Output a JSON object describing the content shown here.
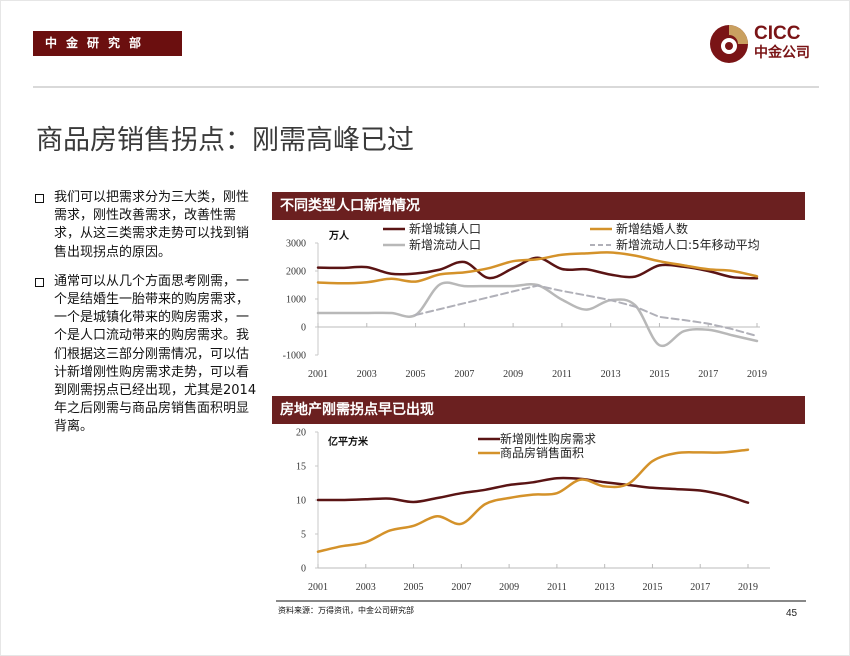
{
  "header": {
    "department": "中金研究部",
    "logo_latin": "CICC",
    "logo_chinese": "中金公司",
    "title": "商品房销售拐点：刚需高峰已过"
  },
  "bullets": [
    "我们可以把需求分为三大类，刚性需求，刚性改善需求，改善性需求，从这三类需求走势可以找到销售出现拐点的原因。",
    "通常可以从几个方面思考刚需，一个是结婚生一胎带来的购房需求，一个是城镇化带来的购房需求，一个是人口流动带来的购房需求。我们根据这三部分刚需情况，可以估计新增刚性购房需求走势，可以看到刚需拐点已经出现，尤其是2014年之后刚需与商品房销售面积明显背离。"
  ],
  "colors": {
    "dark_red": "#5a1414",
    "gold": "#d4922a",
    "gray": "#b8b8b8",
    "dashed": "#b0b0b8",
    "panel": "#6b2020"
  },
  "chart_data": [
    {
      "type": "line",
      "title": "不同类型人口新增情况",
      "ylabel": "万人",
      "xlabel": "",
      "ylim": [
        -1000,
        3000
      ],
      "yticks": [
        "3000",
        "2000",
        "1000",
        "0",
        "-1000"
      ],
      "xticks": [
        "2001",
        "2003",
        "2005",
        "2007",
        "2009",
        "2011",
        "2013",
        "2015",
        "2017",
        "2019"
      ],
      "x": [
        2001,
        2002,
        2003,
        2004,
        2005,
        2006,
        2007,
        2008,
        2009,
        2010,
        2011,
        2012,
        2013,
        2014,
        2015,
        2016,
        2017,
        2018,
        2019
      ],
      "legend_position": "top",
      "series": [
        {
          "name": "新增城镇人口",
          "color": "dark_red",
          "dash": false,
          "values": [
            2120,
            2110,
            2140,
            1900,
            1910,
            2050,
            2320,
            1750,
            2100,
            2470,
            2070,
            2060,
            1870,
            1800,
            2200,
            2150,
            2000,
            1780,
            1740
          ]
        },
        {
          "name": "新增结婚人数",
          "color": "gold",
          "dash": false,
          "values": [
            1590,
            1560,
            1600,
            1720,
            1620,
            1880,
            1950,
            2100,
            2350,
            2420,
            2580,
            2630,
            2660,
            2550,
            2350,
            2200,
            2060,
            2000,
            1810
          ]
        },
        {
          "name": "新增流动人口",
          "color": "gray",
          "dash": false,
          "values": [
            500,
            500,
            500,
            500,
            430,
            1520,
            1460,
            1460,
            1460,
            1500,
            980,
            620,
            960,
            780,
            -650,
            -150,
            -100,
            -300,
            -500
          ]
        },
        {
          "name": "新增流动人口:5年移动平均",
          "color": "dashed",
          "dash": true,
          "values": [
            null,
            null,
            null,
            null,
            430,
            640,
            850,
            1060,
            1270,
            1480,
            1290,
            1130,
            960,
            730,
            360,
            250,
            120,
            -80,
            -320
          ]
        }
      ]
    },
    {
      "type": "line",
      "title": "房地产刚需拐点早已出现",
      "ylabel": "亿平方米",
      "xlabel": "",
      "ylim": [
        0,
        20
      ],
      "yticks": [
        "20",
        "15",
        "10",
        "5",
        "0"
      ],
      "xticks": [
        "2001",
        "2003",
        "2005",
        "2007",
        "2009",
        "2011",
        "2013",
        "2015",
        "2017",
        "2019"
      ],
      "x": [
        2001,
        2002,
        2003,
        2004,
        2005,
        2006,
        2007,
        2008,
        2009,
        2010,
        2011,
        2012,
        2013,
        2014,
        2015,
        2016,
        2017,
        2018,
        2019
      ],
      "legend_position": "top",
      "series": [
        {
          "name": "新增刚性购房需求",
          "color": "dark_red",
          "dash": false,
          "values": [
            10.0,
            10.0,
            10.1,
            10.2,
            9.7,
            10.3,
            11.0,
            11.5,
            12.2,
            12.6,
            13.2,
            13.1,
            12.6,
            12.2,
            11.8,
            11.6,
            11.4,
            10.7,
            9.6
          ]
        },
        {
          "name": "商品房销售面积",
          "color": "gold",
          "dash": false,
          "values": [
            2.4,
            3.2,
            3.8,
            5.5,
            6.2,
            7.6,
            6.5,
            9.4,
            10.3,
            10.8,
            11.0,
            13.0,
            12.0,
            12.4,
            15.7,
            16.9,
            17.0,
            17.0,
            17.4
          ]
        }
      ]
    }
  ],
  "footer": {
    "source": "资料来源：万得资讯，中金公司研究部",
    "page_number": "45"
  }
}
